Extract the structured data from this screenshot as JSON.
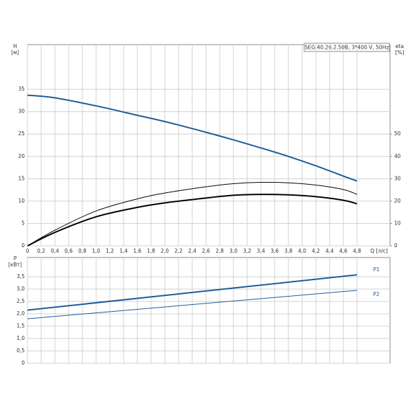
{
  "chart_data": [
    {
      "type": "line",
      "title": "SEG.40.26.2.50B, 3*400 V, 50Hz",
      "y_label": "H",
      "y_unit": "[м]",
      "y2_label": "eta",
      "y2_unit": "[%]",
      "x_label": "Q [л/с]",
      "x": [
        0,
        0.4,
        1.0,
        1.6,
        2.0,
        2.6,
        3.0,
        3.4,
        3.8,
        4.2,
        4.6,
        4.8
      ],
      "xlim": [
        0,
        5.28
      ],
      "xticks": [
        0,
        {
          "value": 0.2,
          "label": "0,2"
        },
        {
          "value": 0.4,
          "label": "0,4"
        },
        {
          "value": 0.6,
          "label": "0,6"
        },
        {
          "value": 0.8,
          "label": "0,8"
        },
        {
          "value": 1.0,
          "label": "1,0"
        },
        {
          "value": 1.2,
          "label": "1,2"
        },
        {
          "value": 1.4,
          "label": "1,4"
        },
        {
          "value": 1.6,
          "label": "1,6"
        },
        {
          "value": 1.8,
          "label": "1,8"
        },
        {
          "value": 2.0,
          "label": "2,0"
        },
        {
          "value": 2.2,
          "label": "2,2"
        },
        {
          "value": 2.4,
          "label": "2,4"
        },
        {
          "value": 2.6,
          "label": "2,6"
        },
        {
          "value": 2.8,
          "label": "2,8"
        },
        {
          "value": 3.0,
          "label": "3,0"
        },
        {
          "value": 3.2,
          "label": "3,2"
        },
        {
          "value": 3.4,
          "label": "3,4"
        },
        {
          "value": 3.6,
          "label": "3,6"
        },
        {
          "value": 3.8,
          "label": "3,8"
        },
        {
          "value": 4.0,
          "label": "4,0"
        },
        {
          "value": 4.2,
          "label": "4,2"
        },
        {
          "value": 4.4,
          "label": "4,4"
        },
        {
          "value": 4.6,
          "label": "4,6"
        },
        {
          "value": 4.8,
          "label": "4,8"
        }
      ],
      "ylim": [
        0,
        45
      ],
      "yticks": [
        0,
        5,
        10,
        15,
        20,
        25,
        30,
        35
      ],
      "y2lim": [
        0,
        90
      ],
      "y2ticks": [
        0,
        10,
        20,
        30,
        40,
        50
      ],
      "grid": true,
      "series": [
        {
          "color": "#1f5a96",
          "line_width": 2,
          "values": [
            33.7,
            33.1,
            31.3,
            29.2,
            27.8,
            25.4,
            23.7,
            21.9,
            20.0,
            17.9,
            15.6,
            14.5
          ]
        },
        {
          "color": "#000000",
          "line_width": 1,
          "axis": "y2",
          "values": [
            0,
            7,
            15.6,
            21,
            23.6,
            26.4,
            27.8,
            28.4,
            28.2,
            27.2,
            25.2,
            23
          ]
        },
        {
          "color": "#000000",
          "line_width": 2,
          "axis": "y2",
          "values": [
            0,
            6,
            13,
            17.2,
            19.2,
            21.4,
            22.6,
            23,
            22.8,
            22,
            20.4,
            18.8
          ]
        }
      ]
    },
    {
      "type": "line",
      "y_label": "P",
      "y_unit": "[кВт]",
      "x": [
        0,
        4.8
      ],
      "ylim": [
        0,
        4.28
      ],
      "yticks": [
        0,
        {
          "value": 0.5,
          "label": "0,5"
        },
        {
          "value": 1.0,
          "label": "1,0"
        },
        {
          "value": 1.5,
          "label": "1,5"
        },
        {
          "value": 2.0,
          "label": "2,0"
        },
        {
          "value": 2.5,
          "label": "2,5"
        },
        {
          "value": 3.0,
          "label": "3,0"
        },
        {
          "value": 3.5,
          "label": "3,5"
        }
      ],
      "grid": true,
      "series": [
        {
          "name": "P1",
          "color": "#1f5a96",
          "line_width": 2,
          "values": [
            2.15,
            3.58
          ]
        },
        {
          "name": "P2",
          "color": "#1f5a96",
          "line_width": 1,
          "values": [
            1.8,
            2.95
          ]
        }
      ]
    }
  ]
}
